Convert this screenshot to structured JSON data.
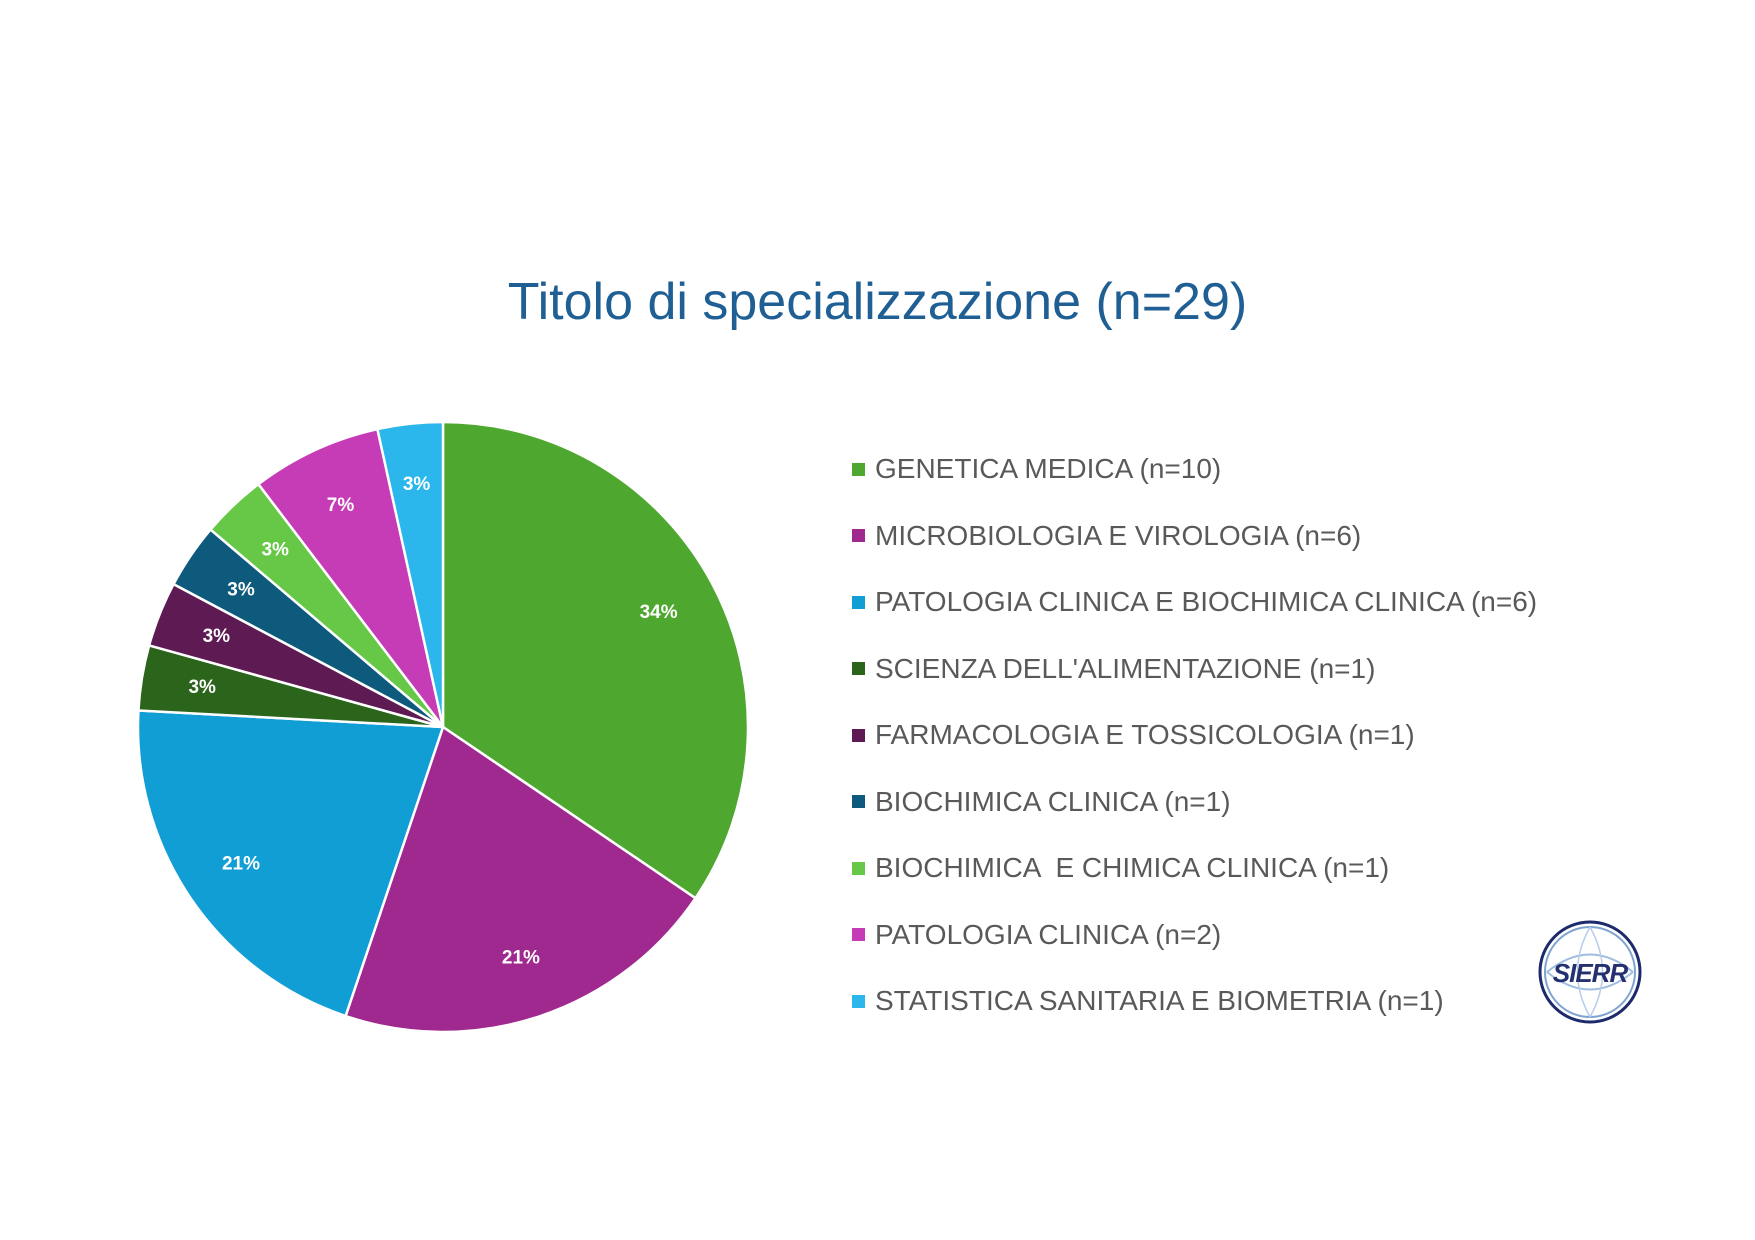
{
  "chart_data": {
    "type": "pie",
    "title": "Titolo di specializzazione (n=29)",
    "slices": [
      {
        "label": "GENETICA MEDICA (n=10)",
        "value": 10,
        "percent_label": "34%",
        "color": "#4ea72e"
      },
      {
        "label": "MICROBIOLOGIA E VIROLOGIA (n=6)",
        "value": 6,
        "percent_label": "21%",
        "color": "#a0298f"
      },
      {
        "label": "PATOLOGIA CLINICA E BIOCHIMICA CLINICA (n=6)",
        "value": 6,
        "percent_label": "21%",
        "color": "#119ed5"
      },
      {
        "label": "SCIENZA DELL'ALIMENTAZIONE (n=1)",
        "value": 1,
        "percent_label": "3%",
        "color": "#2b641b"
      },
      {
        "label": "FARMACOLOGIA E TOSSICOLOGIA (n=1)",
        "value": 1,
        "percent_label": "3%",
        "color": "#5e1a52"
      },
      {
        "label": "BIOCHIMICA CLINICA (n=1)",
        "value": 1,
        "percent_label": "3%",
        "color": "#0d5a7c"
      },
      {
        "label": "BIOCHIMICA  E CHIMICA CLINICA (n=1)",
        "value": 1,
        "percent_label": "3%",
        "color": "#66c846"
      },
      {
        "label": "PATOLOGIA CLINICA (n=2)",
        "value": 2,
        "percent_label": "7%",
        "color": "#c63bb6"
      },
      {
        "label": "STATISTICA SANITARIA E BIOMETRIA (n=1)",
        "value": 1,
        "percent_label": "3%",
        "color": "#2bb7ec"
      }
    ],
    "legend_position": "right",
    "start_angle": "top, clockwise"
  },
  "logo": {
    "text": "SIERR"
  }
}
